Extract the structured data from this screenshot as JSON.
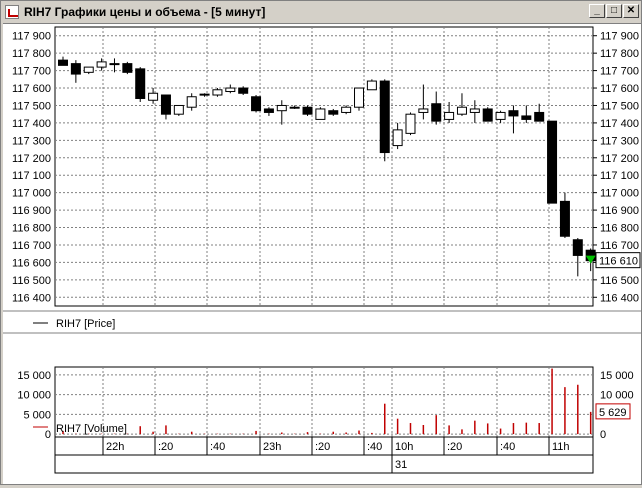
{
  "window": {
    "title": "RIH7 Графики цены и объема - [5 минут]",
    "minimize_glyph": "_",
    "restore_glyph": "□",
    "close_glyph": "✕"
  },
  "price_panel": {
    "legend": "RIH7 [Price]",
    "y_ticks": [
      "117 900",
      "117 800",
      "117 700",
      "117 600",
      "117 500",
      "117 400",
      "117 300",
      "117 200",
      "117 100",
      "117 000",
      "116 900",
      "116 800",
      "116 700",
      "116 600",
      "116 500",
      "116 400"
    ],
    "current_price_label": "116 610",
    "up_color": "#ffffff",
    "down_color": "#000000",
    "marker_color": "#00c000"
  },
  "volume_panel": {
    "legend": "RIH7 [Volume]",
    "y_ticks": [
      "15 000",
      "10 000",
      "5 000",
      "0"
    ],
    "current_volume_label": "5 629",
    "bar_color": "#c00000"
  },
  "time_axis": {
    "time_labels": [
      "22h",
      ":20",
      ":40",
      "23h",
      ":20",
      ":40",
      "10h",
      ":20",
      ":40",
      "11h"
    ],
    "date_labels": [
      "31"
    ]
  },
  "chart_data": {
    "type": "candlestick",
    "title": "",
    "price_ylim": [
      116350,
      117950
    ],
    "volume_ylim": [
      -1500,
      17000
    ],
    "candles": [
      {
        "o": 117760,
        "h": 117780,
        "l": 117730,
        "c": 117730,
        "v": 800
      },
      {
        "o": 117740,
        "h": 117760,
        "l": 117630,
        "c": 117680,
        "v": 100
      },
      {
        "o": 117690,
        "h": 117720,
        "l": 117680,
        "c": 117720,
        "v": 100
      },
      {
        "o": 117720,
        "h": 117770,
        "l": 117700,
        "c": 117750,
        "v": 100
      },
      {
        "o": 117740,
        "h": 117770,
        "l": 117690,
        "c": 117740,
        "v": 100
      },
      {
        "o": 117740,
        "h": 117750,
        "l": 117680,
        "c": 117690,
        "v": 100
      },
      {
        "o": 117710,
        "h": 117720,
        "l": 117520,
        "c": 117540,
        "v": 2000
      },
      {
        "o": 117530,
        "h": 117600,
        "l": 117510,
        "c": 117570,
        "v": 600
      },
      {
        "o": 117560,
        "h": 117560,
        "l": 117420,
        "c": 117450,
        "v": 2200
      },
      {
        "o": 117450,
        "h": 117500,
        "l": 117440,
        "c": 117500,
        "v": 100
      },
      {
        "o": 117490,
        "h": 117570,
        "l": 117470,
        "c": 117550,
        "v": 600
      },
      {
        "o": 117560,
        "h": 117570,
        "l": 117550,
        "c": 117565,
        "v": 100
      },
      {
        "o": 117560,
        "h": 117600,
        "l": 117550,
        "c": 117590,
        "v": 100
      },
      {
        "o": 117580,
        "h": 117620,
        "l": 117570,
        "c": 117600,
        "v": 100
      },
      {
        "o": 117600,
        "h": 117610,
        "l": 117560,
        "c": 117570,
        "v": 100
      },
      {
        "o": 117550,
        "h": 117560,
        "l": 117460,
        "c": 117470,
        "v": 800
      },
      {
        "o": 117480,
        "h": 117490,
        "l": 117440,
        "c": 117460,
        "v": 100
      },
      {
        "o": 117470,
        "h": 117530,
        "l": 117390,
        "c": 117500,
        "v": 400
      },
      {
        "o": 117490,
        "h": 117500,
        "l": 117480,
        "c": 117490,
        "v": 100
      },
      {
        "o": 117490,
        "h": 117500,
        "l": 117440,
        "c": 117450,
        "v": 500
      },
      {
        "o": 117420,
        "h": 117490,
        "l": 117420,
        "c": 117480,
        "v": 100
      },
      {
        "o": 117470,
        "h": 117480,
        "l": 117440,
        "c": 117450,
        "v": 600
      },
      {
        "o": 117460,
        "h": 117500,
        "l": 117450,
        "c": 117490,
        "v": 400
      },
      {
        "o": 117490,
        "h": 117600,
        "l": 117470,
        "c": 117600,
        "v": 900
      },
      {
        "o": 117590,
        "h": 117650,
        "l": 117590,
        "c": 117640,
        "v": 300
      },
      {
        "o": 117640,
        "h": 117650,
        "l": 117180,
        "c": 117230,
        "v": 7700
      },
      {
        "o": 117270,
        "h": 117400,
        "l": 117250,
        "c": 117360,
        "v": 3900
      },
      {
        "o": 117340,
        "h": 117460,
        "l": 117330,
        "c": 117450,
        "v": 2800
      },
      {
        "o": 117460,
        "h": 117620,
        "l": 117420,
        "c": 117480,
        "v": 2300
      },
      {
        "o": 117510,
        "h": 117580,
        "l": 117390,
        "c": 117410,
        "v": 4800
      },
      {
        "o": 117420,
        "h": 117520,
        "l": 117400,
        "c": 117460,
        "v": 2200
      },
      {
        "o": 117450,
        "h": 117570,
        "l": 117440,
        "c": 117490,
        "v": 1200
      },
      {
        "o": 117460,
        "h": 117530,
        "l": 117400,
        "c": 117480,
        "v": 3400
      },
      {
        "o": 117480,
        "h": 117490,
        "l": 117410,
        "c": 117410,
        "v": 2700
      },
      {
        "o": 117420,
        "h": 117470,
        "l": 117400,
        "c": 117460,
        "v": 1400
      },
      {
        "o": 117470,
        "h": 117500,
        "l": 117340,
        "c": 117440,
        "v": 2800
      },
      {
        "o": 117440,
        "h": 117500,
        "l": 117400,
        "c": 117420,
        "v": 2900
      },
      {
        "o": 117460,
        "h": 117510,
        "l": 117420,
        "c": 117410,
        "v": 2800
      },
      {
        "o": 117410,
        "h": 117410,
        "l": 116940,
        "c": 116940,
        "v": 16600
      },
      {
        "o": 116950,
        "h": 117000,
        "l": 116740,
        "c": 116750,
        "v": 11900
      },
      {
        "o": 116730,
        "h": 116740,
        "l": 116520,
        "c": 116640,
        "v": 12500
      },
      {
        "o": 116670,
        "h": 116680,
        "l": 116550,
        "c": 116610,
        "v": 5629
      }
    ]
  }
}
